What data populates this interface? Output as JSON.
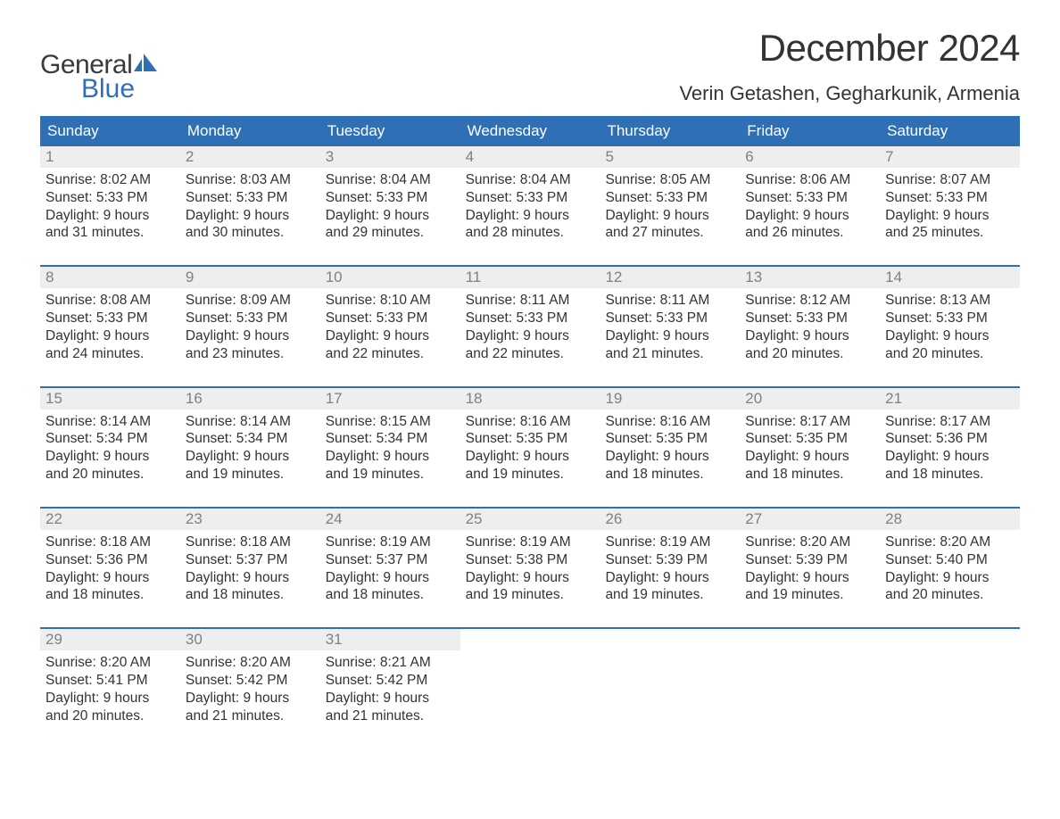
{
  "logo": {
    "general": "General",
    "blue": "Blue"
  },
  "title": "December 2024",
  "location": "Verin Getashen, Gegharkunik, Armenia",
  "colors": {
    "header_bg": "#2f6fb5",
    "header_text": "#ffffff",
    "daynum_bg": "#eeeeee",
    "daynum_text": "#808080",
    "body_text": "#333333",
    "week_border": "#2f6fb5",
    "logo_blue": "#2f6fb5",
    "logo_dark": "#3a3a3a",
    "background": "#ffffff"
  },
  "fonts": {
    "title_size_pt": 32,
    "location_size_pt": 17,
    "dow_size_pt": 13,
    "daynum_size_pt": 13,
    "daytext_size_pt": 12,
    "logo_size_pt": 22
  },
  "days_of_week": [
    "Sunday",
    "Monday",
    "Tuesday",
    "Wednesday",
    "Thursday",
    "Friday",
    "Saturday"
  ],
  "weeks": [
    [
      {
        "n": "1",
        "sunrise": "8:02 AM",
        "sunset": "5:33 PM",
        "dh": "9",
        "dm": "31"
      },
      {
        "n": "2",
        "sunrise": "8:03 AM",
        "sunset": "5:33 PM",
        "dh": "9",
        "dm": "30"
      },
      {
        "n": "3",
        "sunrise": "8:04 AM",
        "sunset": "5:33 PM",
        "dh": "9",
        "dm": "29"
      },
      {
        "n": "4",
        "sunrise": "8:04 AM",
        "sunset": "5:33 PM",
        "dh": "9",
        "dm": "28"
      },
      {
        "n": "5",
        "sunrise": "8:05 AM",
        "sunset": "5:33 PM",
        "dh": "9",
        "dm": "27"
      },
      {
        "n": "6",
        "sunrise": "8:06 AM",
        "sunset": "5:33 PM",
        "dh": "9",
        "dm": "26"
      },
      {
        "n": "7",
        "sunrise": "8:07 AM",
        "sunset": "5:33 PM",
        "dh": "9",
        "dm": "25"
      }
    ],
    [
      {
        "n": "8",
        "sunrise": "8:08 AM",
        "sunset": "5:33 PM",
        "dh": "9",
        "dm": "24"
      },
      {
        "n": "9",
        "sunrise": "8:09 AM",
        "sunset": "5:33 PM",
        "dh": "9",
        "dm": "23"
      },
      {
        "n": "10",
        "sunrise": "8:10 AM",
        "sunset": "5:33 PM",
        "dh": "9",
        "dm": "22"
      },
      {
        "n": "11",
        "sunrise": "8:11 AM",
        "sunset": "5:33 PM",
        "dh": "9",
        "dm": "22"
      },
      {
        "n": "12",
        "sunrise": "8:11 AM",
        "sunset": "5:33 PM",
        "dh": "9",
        "dm": "21"
      },
      {
        "n": "13",
        "sunrise": "8:12 AM",
        "sunset": "5:33 PM",
        "dh": "9",
        "dm": "20"
      },
      {
        "n": "14",
        "sunrise": "8:13 AM",
        "sunset": "5:33 PM",
        "dh": "9",
        "dm": "20"
      }
    ],
    [
      {
        "n": "15",
        "sunrise": "8:14 AM",
        "sunset": "5:34 PM",
        "dh": "9",
        "dm": "20"
      },
      {
        "n": "16",
        "sunrise": "8:14 AM",
        "sunset": "5:34 PM",
        "dh": "9",
        "dm": "19"
      },
      {
        "n": "17",
        "sunrise": "8:15 AM",
        "sunset": "5:34 PM",
        "dh": "9",
        "dm": "19"
      },
      {
        "n": "18",
        "sunrise": "8:16 AM",
        "sunset": "5:35 PM",
        "dh": "9",
        "dm": "19"
      },
      {
        "n": "19",
        "sunrise": "8:16 AM",
        "sunset": "5:35 PM",
        "dh": "9",
        "dm": "18"
      },
      {
        "n": "20",
        "sunrise": "8:17 AM",
        "sunset": "5:35 PM",
        "dh": "9",
        "dm": "18"
      },
      {
        "n": "21",
        "sunrise": "8:17 AM",
        "sunset": "5:36 PM",
        "dh": "9",
        "dm": "18"
      }
    ],
    [
      {
        "n": "22",
        "sunrise": "8:18 AM",
        "sunset": "5:36 PM",
        "dh": "9",
        "dm": "18"
      },
      {
        "n": "23",
        "sunrise": "8:18 AM",
        "sunset": "5:37 PM",
        "dh": "9",
        "dm": "18"
      },
      {
        "n": "24",
        "sunrise": "8:19 AM",
        "sunset": "5:37 PM",
        "dh": "9",
        "dm": "18"
      },
      {
        "n": "25",
        "sunrise": "8:19 AM",
        "sunset": "5:38 PM",
        "dh": "9",
        "dm": "19"
      },
      {
        "n": "26",
        "sunrise": "8:19 AM",
        "sunset": "5:39 PM",
        "dh": "9",
        "dm": "19"
      },
      {
        "n": "27",
        "sunrise": "8:20 AM",
        "sunset": "5:39 PM",
        "dh": "9",
        "dm": "19"
      },
      {
        "n": "28",
        "sunrise": "8:20 AM",
        "sunset": "5:40 PM",
        "dh": "9",
        "dm": "20"
      }
    ],
    [
      {
        "n": "29",
        "sunrise": "8:20 AM",
        "sunset": "5:41 PM",
        "dh": "9",
        "dm": "20"
      },
      {
        "n": "30",
        "sunrise": "8:20 AM",
        "sunset": "5:42 PM",
        "dh": "9",
        "dm": "21"
      },
      {
        "n": "31",
        "sunrise": "8:21 AM",
        "sunset": "5:42 PM",
        "dh": "9",
        "dm": "21"
      },
      null,
      null,
      null,
      null
    ]
  ],
  "labels": {
    "sunrise": "Sunrise:",
    "sunset": "Sunset:",
    "daylight_prefix": "Daylight:",
    "hours_word": "hours",
    "and_word": "and",
    "minutes_word": "minutes."
  }
}
